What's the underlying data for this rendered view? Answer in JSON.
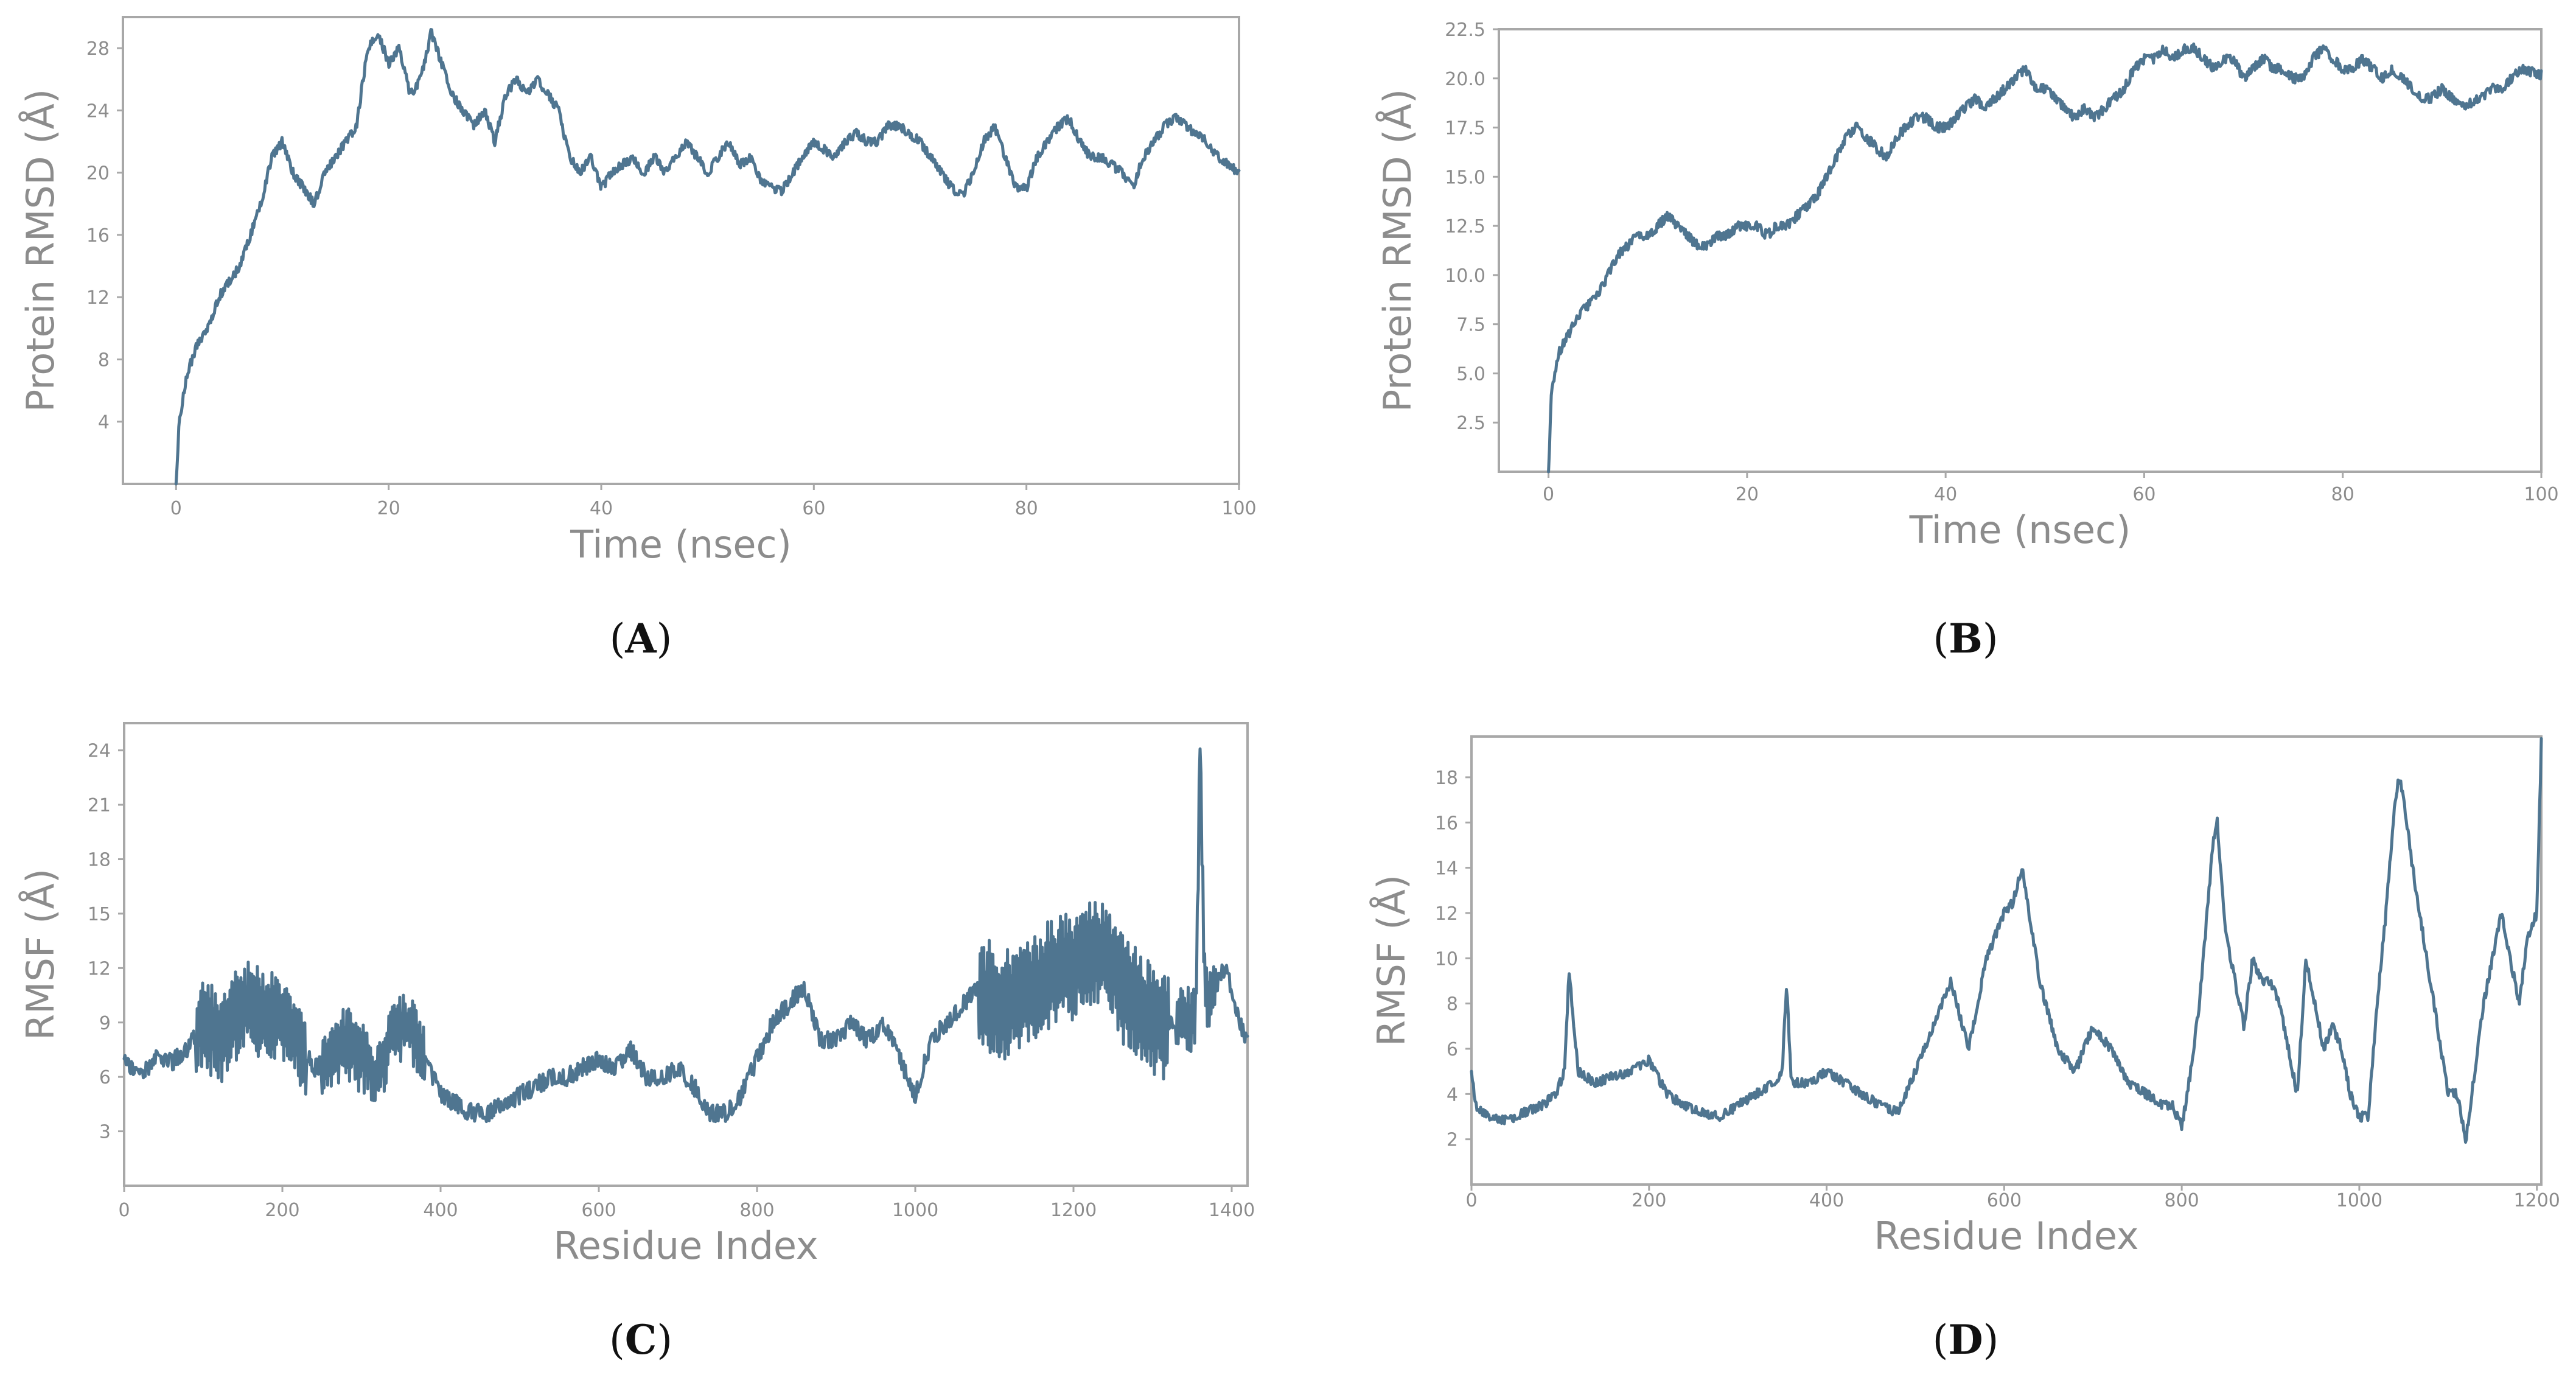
{
  "colors": {
    "line": "#4f7590",
    "frame": "#a8a8a8",
    "text": "#8c8c8c"
  },
  "chart_data": [
    {
      "id": "A",
      "caption_letter": "A",
      "type": "line",
      "title": "",
      "xlabel": "Time (nsec)",
      "ylabel": "Protein RMSD (Å)",
      "xlim": [
        -5,
        100
      ],
      "ylim": [
        0,
        30
      ],
      "xticks": [
        0,
        20,
        40,
        60,
        80,
        100
      ],
      "yticks": [
        4,
        8,
        12,
        16,
        20,
        24,
        28
      ],
      "ytick_labels": [
        "4",
        "8",
        "12",
        "16",
        "20",
        "24",
        "28"
      ],
      "grid": false,
      "noise": 0.35,
      "seed": 11,
      "series": [
        {
          "name": "Protein RMSD",
          "x": [
            0,
            0.3,
            1,
            1.5,
            2,
            3,
            4,
            5,
            6,
            7,
            8,
            9,
            10,
            11,
            12,
            13,
            14,
            15,
            16,
            17,
            18,
            19,
            20,
            21,
            22,
            23,
            24,
            25,
            26,
            27,
            28,
            29,
            30,
            31,
            32,
            33,
            34,
            35,
            36,
            37,
            38,
            39,
            40,
            41,
            42,
            43,
            44,
            45,
            46,
            47,
            48,
            49,
            50,
            51,
            52,
            53,
            54,
            55,
            56,
            57,
            58,
            59,
            60,
            61,
            62,
            63,
            64,
            65,
            66,
            67,
            68,
            69,
            70,
            71,
            72,
            73,
            74,
            75,
            76,
            77,
            78,
            79,
            80,
            81,
            82,
            83,
            84,
            85,
            86,
            87,
            88,
            89,
            90,
            91,
            92,
            93,
            94,
            95,
            96,
            97,
            98,
            99,
            100
          ],
          "values": [
            0,
            4,
            7,
            8,
            9,
            10,
            12,
            13,
            14,
            16,
            18,
            21,
            22,
            20,
            19,
            18,
            20,
            21,
            22,
            23,
            28,
            29,
            27,
            28,
            25,
            26,
            29,
            27,
            25,
            24,
            23,
            24,
            22,
            25,
            26,
            25,
            26,
            25,
            24,
            21,
            20,
            21,
            19,
            20,
            20.5,
            21,
            20,
            21,
            20,
            21,
            22,
            21,
            20,
            21,
            22,
            20.5,
            21,
            19.5,
            19,
            18.8,
            20,
            21,
            22,
            21.5,
            21,
            22,
            22.5,
            22,
            22,
            23,
            23,
            22.5,
            22,
            21,
            20,
            19,
            18.5,
            20,
            22,
            23,
            21,
            19,
            19,
            21,
            22,
            23,
            23.5,
            22,
            21,
            21,
            20.5,
            20,
            19,
            21,
            22,
            23,
            23.5,
            23,
            22.5,
            22,
            21,
            20.5,
            20
          ]
        }
      ]
    },
    {
      "id": "B",
      "caption_letter": "B",
      "type": "line",
      "title": "",
      "xlabel": "Time (nsec)",
      "ylabel": "Protein RMSD (Å)",
      "xlim": [
        -5,
        100
      ],
      "ylim": [
        0,
        22.5
      ],
      "xticks": [
        0,
        20,
        40,
        60,
        80,
        100
      ],
      "yticks": [
        2.5,
        5,
        7.5,
        10,
        12.5,
        15,
        17.5,
        20,
        22.5
      ],
      "ytick_labels": [
        "2.5",
        "5.0",
        "7.5",
        "10.0",
        "12.5",
        "15.0",
        "17.5",
        "20.0",
        "22.5"
      ],
      "grid": false,
      "noise": 0.3,
      "seed": 23,
      "series": [
        {
          "name": "Protein RMSD",
          "x": [
            0,
            0.3,
            1,
            2,
            3,
            4,
            5,
            6,
            7,
            8,
            9,
            10,
            11,
            12,
            13,
            14,
            15,
            16,
            17,
            18,
            19,
            20,
            21,
            22,
            23,
            24,
            25,
            26,
            27,
            28,
            29,
            30,
            31,
            32,
            33,
            34,
            35,
            36,
            37,
            38,
            39,
            40,
            41,
            42,
            43,
            44,
            45,
            46,
            47,
            48,
            49,
            50,
            51,
            52,
            53,
            54,
            55,
            56,
            57,
            58,
            59,
            60,
            61,
            62,
            63,
            64,
            65,
            66,
            67,
            68,
            69,
            70,
            71,
            72,
            73,
            74,
            75,
            76,
            77,
            78,
            79,
            80,
            81,
            82,
            83,
            84,
            85,
            86,
            87,
            88,
            89,
            90,
            91,
            92,
            93,
            94,
            95,
            96,
            97,
            98,
            99,
            100
          ],
          "values": [
            0,
            4,
            6,
            7,
            8,
            8.5,
            9,
            10,
            11,
            11.5,
            12,
            12,
            12.5,
            13,
            12.5,
            12,
            11.5,
            11.5,
            12,
            12,
            12.5,
            12.5,
            12.5,
            12,
            12.5,
            12.5,
            13,
            13.5,
            14,
            15,
            16,
            17,
            17.5,
            17,
            16.5,
            16,
            17,
            17.5,
            18,
            18,
            17.5,
            17.5,
            18,
            18.5,
            19,
            18.5,
            19,
            19.5,
            20,
            20.5,
            19.5,
            19.5,
            19,
            18.5,
            18,
            18.5,
            18,
            18.5,
            19,
            19.5,
            20.5,
            21,
            21,
            21.5,
            21,
            21.5,
            21.5,
            21,
            20.5,
            21,
            21,
            20,
            20.5,
            21,
            20.5,
            20.5,
            20,
            20,
            21,
            21.5,
            21,
            20.5,
            20.5,
            21,
            20.5,
            20,
            20.5,
            20,
            19.5,
            19,
            19,
            19.5,
            19,
            18.5,
            18.8,
            19,
            19.5,
            19.5,
            20,
            20.5,
            20.3,
            20.2
          ]
        }
      ]
    },
    {
      "id": "C",
      "caption_letter": "C",
      "type": "line",
      "title": "",
      "xlabel": "Residue Index",
      "ylabel": "RMSF (Å)",
      "xlim": [
        0,
        1420
      ],
      "ylim": [
        0,
        25.5
      ],
      "xticks": [
        0,
        200,
        400,
        600,
        800,
        1000,
        1200,
        1400
      ],
      "yticks": [
        3,
        6,
        9,
        12,
        15,
        18,
        21,
        24
      ],
      "ytick_labels": [
        "3",
        "6",
        "9",
        "12",
        "15",
        "18",
        "21",
        "24"
      ],
      "grid": false,
      "noise": 0.6,
      "seed": 37,
      "dense_ranges": [
        [
          90,
          230,
          4.5
        ],
        [
          250,
          380,
          3.2
        ],
        [
          1080,
          1320,
          5.5
        ],
        [
          1330,
          1380,
          3.0
        ]
      ],
      "series": [
        {
          "name": "RMSF",
          "x": [
            0,
            10,
            20,
            40,
            60,
            80,
            100,
            120,
            140,
            160,
            180,
            200,
            220,
            240,
            260,
            280,
            300,
            320,
            340,
            360,
            380,
            400,
            420,
            440,
            460,
            480,
            500,
            520,
            540,
            560,
            580,
            600,
            620,
            640,
            660,
            680,
            700,
            720,
            740,
            760,
            780,
            800,
            820,
            840,
            860,
            880,
            900,
            920,
            940,
            960,
            980,
            1000,
            1020,
            1040,
            1060,
            1080,
            1100,
            1120,
            1140,
            1160,
            1180,
            1200,
            1220,
            1240,
            1260,
            1280,
            1300,
            1320,
            1340,
            1350,
            1355,
            1360,
            1365,
            1370,
            1380,
            1390,
            1400,
            1410,
            1420
          ],
          "values": [
            7,
            6.5,
            6,
            7,
            6.8,
            7.5,
            9,
            8,
            9.5,
            10,
            9,
            9.5,
            8,
            6.5,
            7,
            8,
            7,
            6,
            8.5,
            9,
            7,
            5,
            4.5,
            4,
            4,
            4.5,
            5,
            5.5,
            6,
            6,
            6.5,
            7,
            6.5,
            7.5,
            6,
            6,
            6.5,
            5.5,
            4,
            4,
            5,
            7,
            9,
            10,
            11,
            8,
            8,
            9,
            8,
            9,
            7,
            5,
            8,
            9,
            10,
            11,
            10,
            10,
            11,
            11,
            12,
            12,
            13,
            13,
            11,
            10,
            9,
            9,
            9,
            9,
            10,
            25,
            12,
            10,
            11,
            12,
            11,
            9,
            8
          ]
        }
      ]
    },
    {
      "id": "D",
      "caption_letter": "D",
      "type": "line",
      "title": "",
      "xlabel": "Residue Index",
      "ylabel": "RMSF (Å)",
      "xlim": [
        0,
        1205
      ],
      "ylim": [
        0,
        19.8
      ],
      "xticks": [
        0,
        200,
        400,
        600,
        800,
        1000,
        1200
      ],
      "yticks": [
        2,
        4,
        6,
        8,
        10,
        12,
        14,
        16,
        18
      ],
      "ytick_labels": [
        "2",
        "4",
        "6",
        "8",
        "10",
        "12",
        "14",
        "16",
        "18"
      ],
      "grid": false,
      "noise": 0.25,
      "seed": 53,
      "series": [
        {
          "name": "RMSF",
          "x": [
            0,
            5,
            20,
            40,
            60,
            80,
            95,
            105,
            110,
            120,
            140,
            160,
            180,
            200,
            220,
            240,
            260,
            280,
            300,
            320,
            340,
            350,
            355,
            360,
            380,
            400,
            420,
            440,
            460,
            480,
            500,
            520,
            540,
            560,
            580,
            590,
            600,
            610,
            620,
            640,
            660,
            680,
            700,
            720,
            740,
            760,
            780,
            790,
            800,
            810,
            820,
            835,
            840,
            850,
            860,
            870,
            880,
            890,
            900,
            910,
            920,
            930,
            940,
            950,
            960,
            970,
            980,
            990,
            1000,
            1010,
            1020,
            1030,
            1040,
            1045,
            1050,
            1060,
            1080,
            1100,
            1110,
            1115,
            1120,
            1130,
            1140,
            1150,
            1160,
            1170,
            1180,
            1190,
            1200,
            1205
          ],
          "values": [
            5,
            3.5,
            3,
            2.8,
            3.2,
            3.5,
            4,
            5,
            9.5,
            5,
            4.5,
            4.8,
            5,
            5.5,
            4,
            3.5,
            3.2,
            3,
            3.5,
            4,
            4.5,
            5,
            9,
            4.5,
            4.5,
            5,
            4.5,
            4,
            3.5,
            3.2,
            5,
            7,
            9,
            6,
            10,
            11,
            12,
            12.5,
            14,
            9,
            6,
            5,
            7,
            6,
            4.5,
            4,
            3.5,
            3.5,
            2.5,
            5,
            8,
            15,
            16,
            11,
            9,
            7,
            10,
            9,
            9,
            8,
            6,
            4,
            10,
            8,
            6,
            7,
            6,
            4,
            3,
            3,
            8,
            12,
            17,
            18,
            17,
            14,
            9,
            4,
            4,
            3,
            2,
            5,
            8,
            10,
            12,
            10,
            8,
            11,
            12,
            19.5
          ]
        }
      ]
    }
  ]
}
